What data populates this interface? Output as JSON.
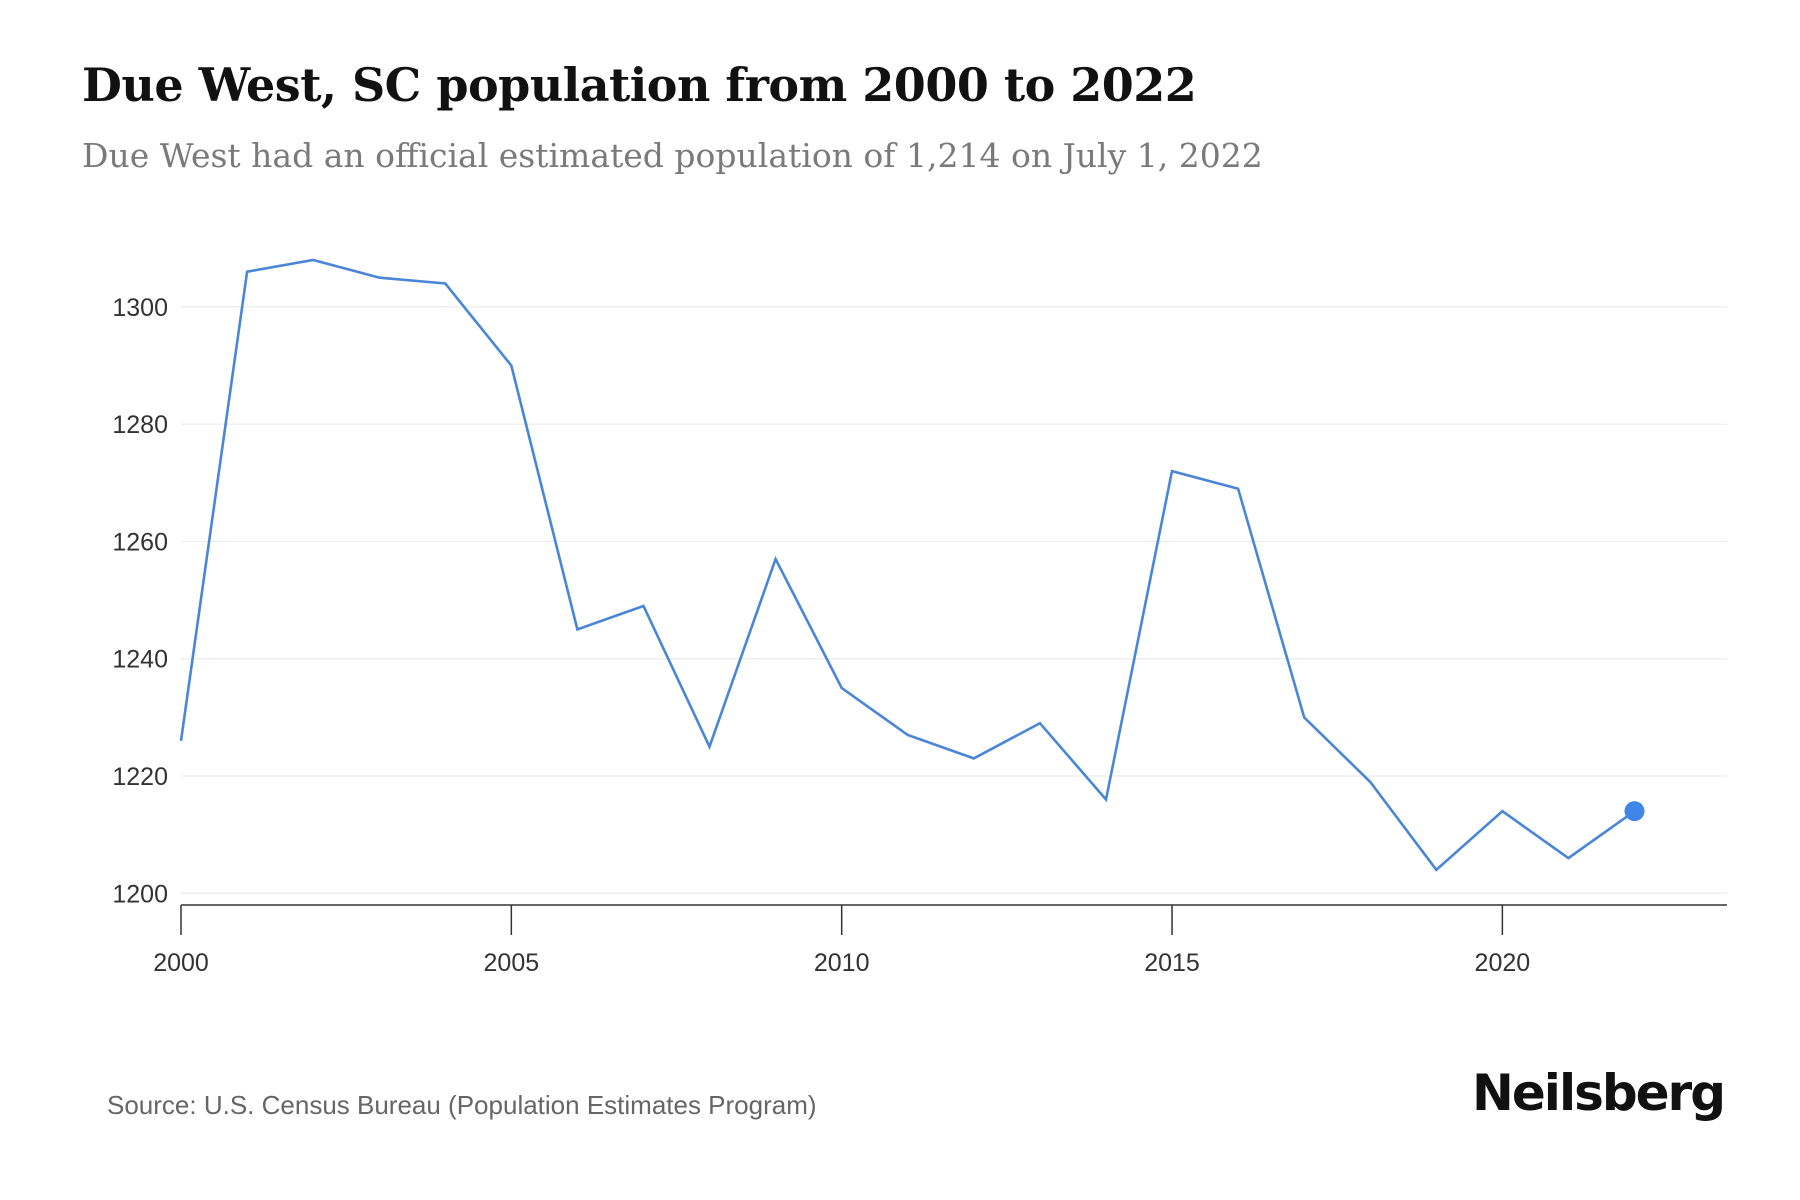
{
  "header": {
    "title": "Due West, SC population from 2000 to 2022",
    "subtitle": "Due West had an official estimated population of 1,214 on July 1, 2022"
  },
  "footer": {
    "source": "Source: U.S. Census Bureau (Population Estimates Program)",
    "brand": "Neilsberg"
  },
  "colors": {
    "line": "#4a86d8",
    "marker": "#3f86e8",
    "grid": "#ececec",
    "axis": "#333333"
  },
  "chart_data": {
    "type": "line",
    "x": [
      2000,
      2001,
      2002,
      2003,
      2004,
      2005,
      2006,
      2007,
      2008,
      2009,
      2010,
      2011,
      2012,
      2013,
      2014,
      2015,
      2016,
      2017,
      2018,
      2019,
      2020,
      2021,
      2022
    ],
    "series": [
      {
        "values": [
          1226,
          1306,
          1308,
          1305,
          1304,
          1290,
          1245,
          1249,
          1225,
          1257,
          1235,
          1227,
          1223,
          1229,
          1216,
          1272,
          1269,
          1230,
          1219,
          1204,
          1214,
          1206,
          1214
        ]
      }
    ],
    "xlim": [
      2000,
      2023.4
    ],
    "ylim": [
      1198,
      1308
    ],
    "xticks": [
      2000,
      2005,
      2010,
      2015,
      2020
    ],
    "yticks": [
      1200,
      1220,
      1240,
      1260,
      1280,
      1300
    ],
    "grid": true,
    "highlight_last_point": true
  }
}
